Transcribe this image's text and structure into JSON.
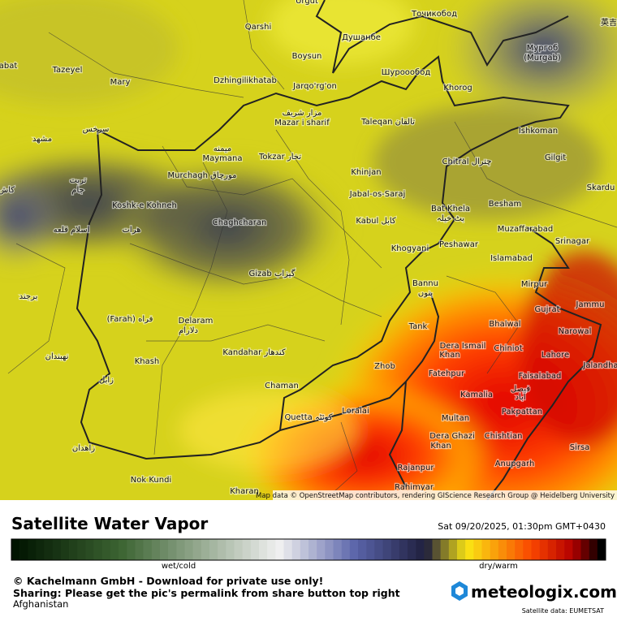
{
  "map": {
    "labels": [
      "Urgut",
      "Qarshi",
      "Душанбе",
      "Точикобод",
      "Мургоб",
      "(Murgab)",
      "Boysun",
      "Шуроообод",
      "Tazeyel",
      "Mary",
      "abat",
      "Dzhingilikhatab",
      "Jarqo'rg'on",
      "Khorog",
      "مزار شریف",
      "Mazar i sharif",
      "Taleqan تالقان",
      "Ishkoman",
      "سرخس",
      "مشهد",
      "میمنه",
      "Maymana",
      "Tokzar تخار",
      "Chitral چترال",
      "Gilgit",
      "Murchagh مورچاق",
      "Khinjan",
      "تربت",
      "جام",
      "کاش",
      "Skardu",
      "Jabal-os-Saraj",
      "Koshk-e Kohneh",
      "Bat Khela",
      "بٹ خیلہ",
      "Besham",
      "Chaghcharan",
      "Kabul کابل",
      "اسلام قلعه",
      "هرات",
      "Muzaffarabad",
      "Srinagar",
      "Peshawar",
      "Khogyani",
      "Islamabad",
      "Gizab گیزاب",
      "Bannu",
      "بنوں",
      "Mirpur",
      "برجند",
      "Jammu",
      "Gujrat",
      "(Farah) فراه",
      "Delaram",
      "دلارام",
      "Tank",
      "Bhalwal",
      "Narowal",
      "Dera Ismail",
      "Khan",
      "Chiniot",
      "Kandahar کندهار",
      "Lahore",
      "نهبندان",
      "Khash",
      "Zhob",
      "Jalandha",
      "Faisalabad",
      "Fatehpur",
      "زابل",
      "Chaman",
      "فیصل",
      "آباد",
      "Kamalia",
      "Loralai",
      "Quetta کوئٹہ",
      "Pakpattan",
      "Multan",
      "Dera Ghazi",
      "Khan",
      "Chishtian",
      "زاهدان",
      "Sirsa",
      "Anupgarh",
      "Rajanpur",
      "Nok Kundi",
      "Kharan",
      "Rahimyar",
      "英吉"
    ],
    "attribution": "Map data © OpenStreetMap contributors, rendering GIScience Research Group @ Heidelberg University"
  },
  "footer": {
    "title": "Satellite Water Vapor",
    "datetime": "Sat 09/20/2025, 01:30pm GMT+0430",
    "scale_left": "wet/cold",
    "scale_right": "dry/warm",
    "copyright": "© Kachelmann GmbH - Download for private use only!",
    "sharing": "Sharing: Please get the pic's permalink from share button top right",
    "region": "Afghanistan",
    "brand": "meteologix.com",
    "source": "Satellite data: EUMETSAT"
  }
}
